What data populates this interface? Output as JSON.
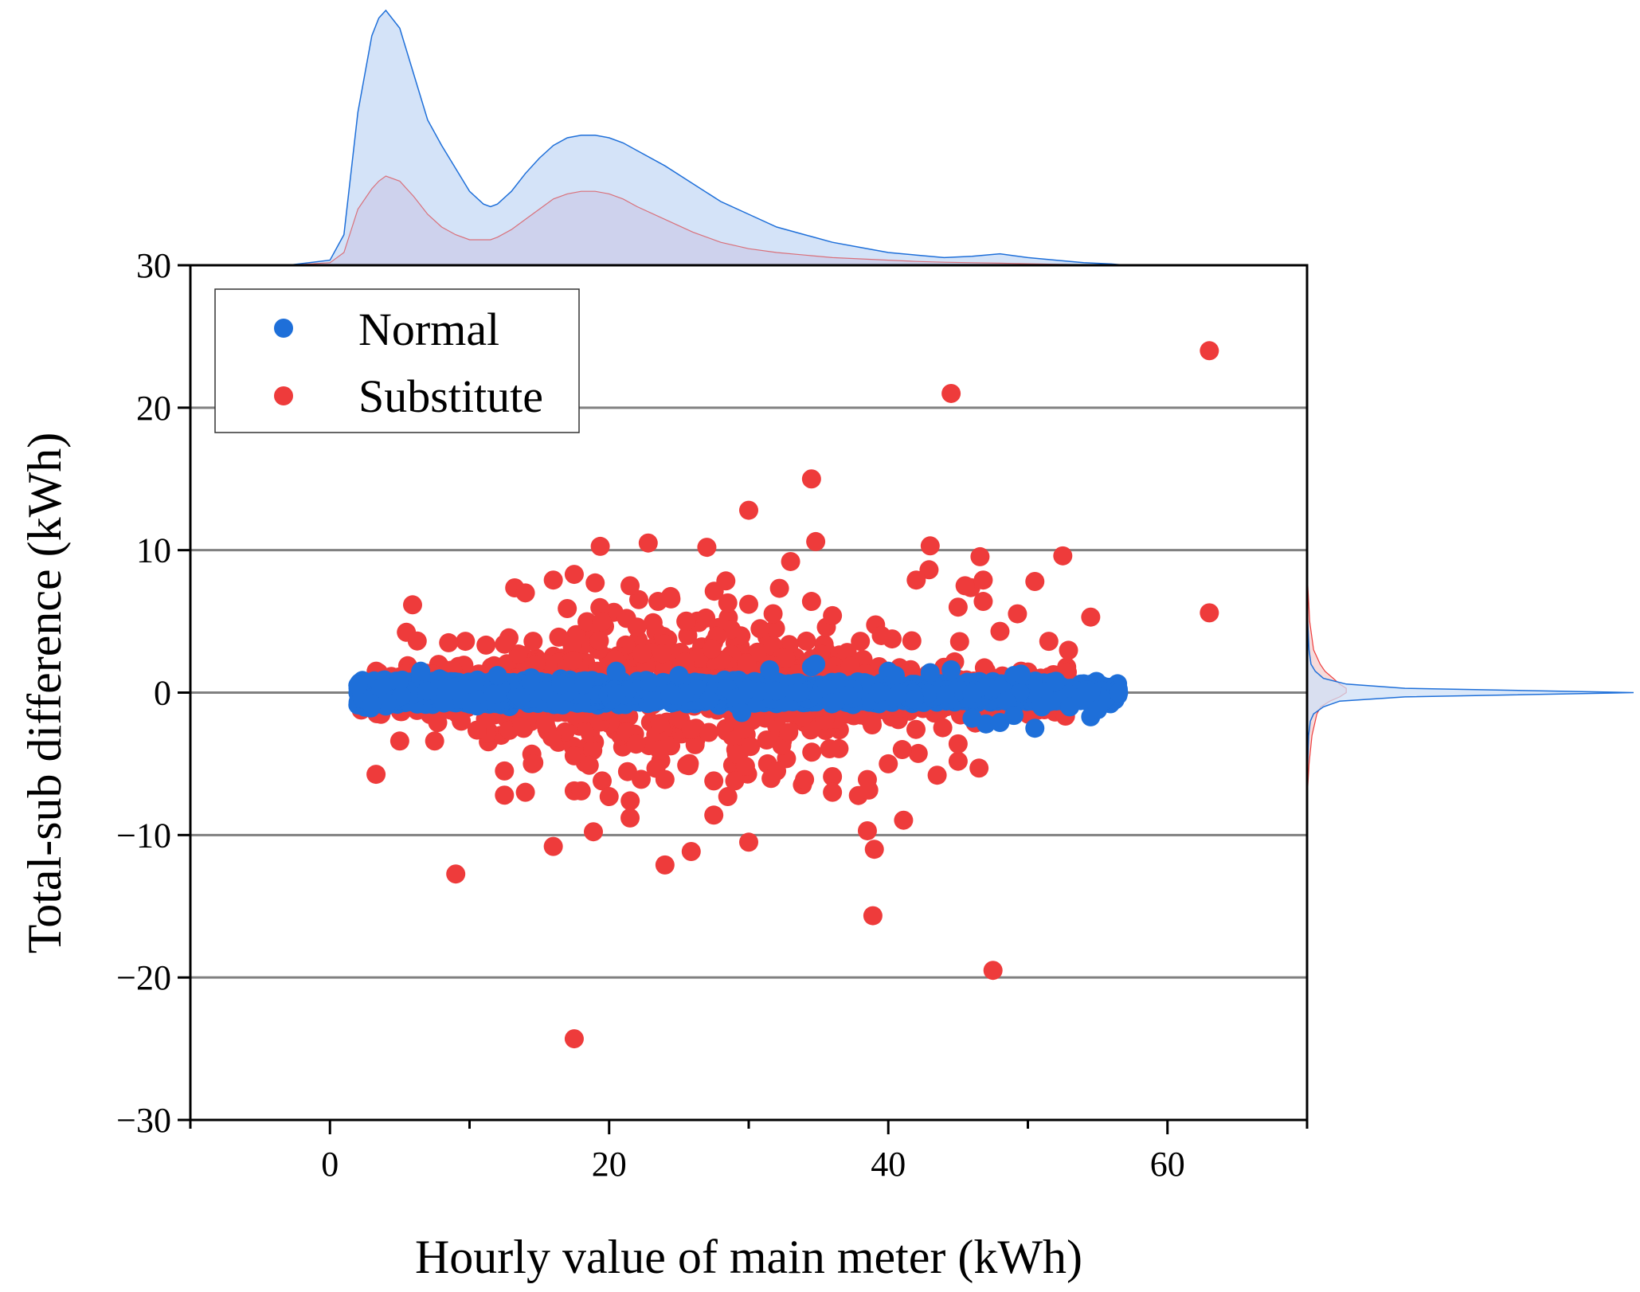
{
  "chart_data": {
    "type": "scatter",
    "title": "",
    "xlabel": "Hourly value of main meter (kWh)",
    "ylabel": "Total-sub difference (kWh)",
    "xlim": [
      -10,
      70
    ],
    "ylim": [
      -30,
      30
    ],
    "x_ticks": [
      0,
      20,
      40,
      60
    ],
    "x_tick_labels": [
      "0",
      "20",
      "40",
      "60"
    ],
    "y_ticks": [
      -30,
      -20,
      -10,
      0,
      10,
      20,
      30
    ],
    "y_tick_labels": [
      "−30",
      "−20",
      "−10",
      "0",
      "10",
      "20",
      "30"
    ],
    "gridlines_y": [
      -20,
      -10,
      0,
      10,
      20
    ],
    "legend_position": "top-left",
    "colors": {
      "normal": "#1e6fd9",
      "substitute": "#ee3b3b",
      "normal_fill": "#cfe0f7",
      "substitute_fill": "#f4d2d2"
    },
    "series": [
      {
        "name": "Normal",
        "color": "#1e6fd9",
        "band": {
          "x_start": 2,
          "x_end": 56.5,
          "core_half_width": 0.8,
          "n_points": 2600
        },
        "points": [
          [
            2,
            0.5
          ],
          [
            3,
            -0.8
          ],
          [
            6.5,
            1.5
          ],
          [
            12,
            1.2
          ],
          [
            20.5,
            1.5
          ],
          [
            25,
            1.2
          ],
          [
            29.5,
            -1.4
          ],
          [
            31.5,
            1.6
          ],
          [
            34.5,
            1.8
          ],
          [
            34.8,
            2.0
          ],
          [
            36,
            -0.7
          ],
          [
            40,
            1.5
          ],
          [
            40.5,
            1.2
          ],
          [
            43,
            1.4
          ],
          [
            44.5,
            1.6
          ],
          [
            46,
            -1.8
          ],
          [
            47,
            -2.2
          ],
          [
            48,
            -2.1
          ],
          [
            49,
            1.2
          ],
          [
            49,
            -1.6
          ],
          [
            49.5,
            1.3
          ],
          [
            50.5,
            -2.5
          ],
          [
            51,
            -1.0
          ],
          [
            52,
            0.8
          ],
          [
            53,
            -1.0
          ],
          [
            54.5,
            0.0
          ],
          [
            54.5,
            -1.7
          ],
          [
            55,
            -1.2
          ],
          [
            56.5,
            0.0
          ]
        ]
      },
      {
        "name": "Substitute",
        "color": "#ee3b3b",
        "cloud": {
          "x_start": 2,
          "x_end": 53,
          "n_points": 1100
        },
        "points": [
          [
            63,
            24
          ],
          [
            44.5,
            21
          ],
          [
            34.5,
            15
          ],
          [
            30,
            12.8
          ],
          [
            22.8,
            10.5
          ],
          [
            27,
            10.2
          ],
          [
            34.8,
            10.6
          ],
          [
            33,
            9.2
          ],
          [
            43,
            10.3
          ],
          [
            52.5,
            9.6
          ],
          [
            17.5,
            8.3
          ],
          [
            16,
            7.9
          ],
          [
            19,
            7.7
          ],
          [
            21.5,
            7.5
          ],
          [
            42,
            7.9
          ],
          [
            45.5,
            7.5
          ],
          [
            46.8,
            7.9
          ],
          [
            50.5,
            7.8
          ],
          [
            14,
            7.0
          ],
          [
            23.5,
            6.4
          ],
          [
            28.5,
            6.3
          ],
          [
            30,
            6.2
          ],
          [
            34.5,
            6.4
          ],
          [
            46.8,
            6.4
          ],
          [
            17,
            5.9
          ],
          [
            45,
            6.0
          ],
          [
            36,
            5.4
          ],
          [
            54.5,
            5.3
          ],
          [
            63,
            5.6
          ],
          [
            51.5,
            3.6
          ],
          [
            48,
            4.3
          ],
          [
            39.5,
            4.0
          ],
          [
            38,
            3.6
          ],
          [
            8.5,
            3.5
          ],
          [
            12.5,
            3.4
          ],
          [
            22,
            4.6
          ],
          [
            25.5,
            5.0
          ],
          [
            5,
            -3.4
          ],
          [
            7.5,
            -3.4
          ],
          [
            12.5,
            -5.5
          ],
          [
            12.5,
            -7.2
          ],
          [
            14,
            -7.0
          ],
          [
            14.5,
            -5.0
          ],
          [
            16,
            -10.8
          ],
          [
            17.5,
            -6.9
          ],
          [
            18,
            -6.9
          ],
          [
            19.5,
            -6.2
          ],
          [
            20,
            -7.3
          ],
          [
            21.5,
            -8.8
          ],
          [
            24,
            -12.1
          ],
          [
            24,
            -6.1
          ],
          [
            27.5,
            -8.6
          ],
          [
            27.5,
            -6.2
          ],
          [
            28.5,
            -7.3
          ],
          [
            30,
            -10.5
          ],
          [
            29,
            -6.2
          ],
          [
            32,
            -5.5
          ],
          [
            34,
            -6.1
          ],
          [
            36,
            -5.9
          ],
          [
            36,
            -7.0
          ],
          [
            38.5,
            -9.7
          ],
          [
            39,
            -11.0
          ],
          [
            38.5,
            -6.1
          ],
          [
            40,
            -5.0
          ],
          [
            41,
            -4.0
          ],
          [
            43.5,
            -5.8
          ],
          [
            46.5,
            -5.3
          ],
          [
            45,
            -3.6
          ],
          [
            47.5,
            -19.5
          ],
          [
            17.5,
            -24.3
          ]
        ]
      }
    ],
    "marginal_x": {
      "x": [
        -3,
        0,
        1,
        2,
        3,
        3.5,
        4,
        5,
        6,
        7,
        8,
        9,
        10,
        11,
        11.5,
        12,
        13,
        14,
        15,
        16,
        17,
        18,
        19,
        20,
        21,
        22,
        24,
        26,
        28,
        30,
        32,
        34,
        36,
        38,
        40,
        42,
        44,
        46,
        48,
        50,
        52,
        54,
        56,
        57
      ],
      "normal": [
        0,
        0.02,
        0.12,
        0.6,
        0.9,
        0.97,
        1.0,
        0.93,
        0.75,
        0.57,
        0.47,
        0.38,
        0.29,
        0.24,
        0.23,
        0.24,
        0.29,
        0.36,
        0.42,
        0.47,
        0.5,
        0.51,
        0.51,
        0.5,
        0.48,
        0.45,
        0.39,
        0.32,
        0.25,
        0.2,
        0.15,
        0.12,
        0.09,
        0.07,
        0.05,
        0.04,
        0.03,
        0.035,
        0.045,
        0.03,
        0.02,
        0.01,
        0.005,
        0
      ],
      "substitute": [
        0,
        0.01,
        0.05,
        0.22,
        0.3,
        0.33,
        0.35,
        0.33,
        0.27,
        0.2,
        0.15,
        0.12,
        0.1,
        0.1,
        0.1,
        0.11,
        0.14,
        0.18,
        0.22,
        0.26,
        0.28,
        0.29,
        0.29,
        0.28,
        0.26,
        0.23,
        0.18,
        0.13,
        0.09,
        0.065,
        0.05,
        0.04,
        0.03,
        0.025,
        0.02,
        0.015,
        0.012,
        0.01,
        0.008,
        0.006,
        0.004,
        0.002,
        0.001,
        0
      ]
    },
    "marginal_y": {
      "y": [
        -7.5,
        -5,
        -3,
        -2,
        -1.5,
        -1,
        -0.6,
        -0.3,
        0,
        0.3,
        0.6,
        1,
        1.5,
        2,
        3,
        5,
        8.5
      ],
      "normal": [
        0,
        0.002,
        0.005,
        0.01,
        0.02,
        0.05,
        0.1,
        0.3,
        1.0,
        0.3,
        0.12,
        0.05,
        0.025,
        0.012,
        0.006,
        0.002,
        0
      ],
      "substitute": [
        0,
        0.006,
        0.015,
        0.025,
        0.03,
        0.042,
        0.07,
        0.1,
        0.12,
        0.12,
        0.1,
        0.08,
        0.055,
        0.04,
        0.02,
        0.008,
        0
      ]
    }
  }
}
